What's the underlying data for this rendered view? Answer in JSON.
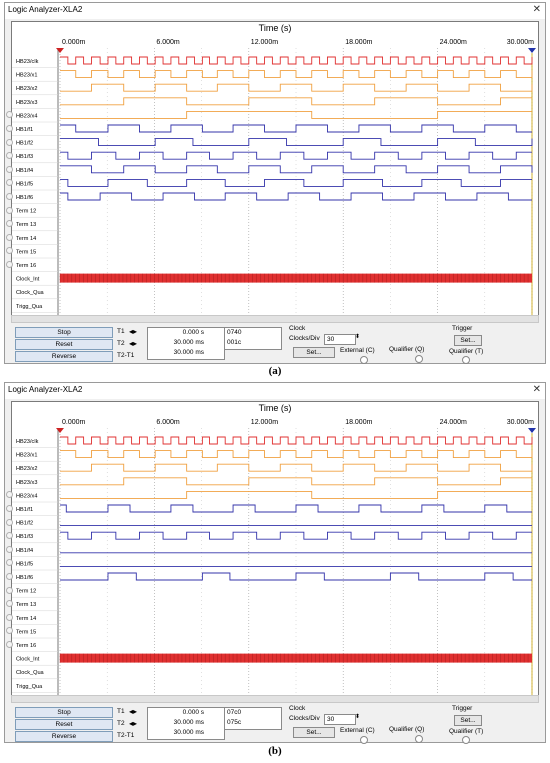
{
  "panels": [
    {
      "caption": "(a)",
      "window_title": "Logic Analyzer-XLA2",
      "axis_title": "Time (s)",
      "ticks": [
        "0.000m",
        "6.000m",
        "12.000m",
        "18.000m",
        "24.000m",
        "30.000m"
      ],
      "signals": [
        "HB23/clk",
        "HB23/x1",
        "HB23/x2",
        "HB23/x3",
        "HB23/x4",
        "HB1/f1",
        "HB1/f2",
        "HB1/f3",
        "HB1/f4",
        "HB1/f5",
        "HB1/f6",
        "Term 12",
        "Term 13",
        "Term 14",
        "Term 15",
        "Term 16",
        "Clock_Int",
        "Clock_Qua",
        "Trigg_Qua"
      ],
      "buttons": {
        "stop": "Stop",
        "reset": "Reset",
        "reverse": "Reverse"
      },
      "t_labels": {
        "t1": "T1",
        "t2": "T2",
        "t2t1": "T2-T1"
      },
      "t_values": {
        "t1": "0.000 s",
        "t2": "30.000 ms",
        "t2t1": "30.000 ms"
      },
      "hex_values": {
        "t1": "0740",
        "t2": "001c"
      },
      "clock": {
        "title": "Clock",
        "clocks_per_div_label": "Clocks/Div",
        "clocks_per_div": "30",
        "set_label": "Set...",
        "external_label": "External (C)",
        "qualifier_label": "Qualifier (Q)"
      },
      "trigger": {
        "title": "Trigger",
        "set_label": "Set...",
        "qualifier_label": "Qualifier (T)"
      }
    },
    {
      "caption": "(b)",
      "window_title": "Logic Analyzer-XLA2",
      "axis_title": "Time (s)",
      "ticks": [
        "0.000m",
        "6.000m",
        "12.000m",
        "18.000m",
        "24.000m",
        "30.000m"
      ],
      "signals": [
        "HB23/clk",
        "HB23/x1",
        "HB23/x2",
        "HB23/x3",
        "HB23/x4",
        "HB1/f1",
        "HB1/f2",
        "HB1/f3",
        "HB1/f4",
        "HB1/f5",
        "HB1/f6",
        "Term 12",
        "Term 13",
        "Term 14",
        "Term 15",
        "Term 16",
        "Clock_Int",
        "Clock_Qua",
        "Trigg_Qua"
      ],
      "buttons": {
        "stop": "Stop",
        "reset": "Reset",
        "reverse": "Reverse"
      },
      "t_labels": {
        "t1": "T1",
        "t2": "T2",
        "t2t1": "T2-T1"
      },
      "t_values": {
        "t1": "0.000 s",
        "t2": "30.000 ms",
        "t2t1": "30.000 ms"
      },
      "hex_values": {
        "t1": "07c0",
        "t2": "075c"
      },
      "clock": {
        "title": "Clock",
        "clocks_per_div_label": "Clocks/Div",
        "clocks_per_div": "30",
        "set_label": "Set...",
        "external_label": "External (C)",
        "qualifier_label": "Qualifier (Q)"
      },
      "trigger": {
        "title": "Trigger",
        "set_label": "Set...",
        "qualifier_label": "Qualifier (T)"
      }
    }
  ],
  "colors": {
    "clk": "#e03030",
    "x_signals": "#f0a040",
    "f_signals": "#3333aa",
    "clock_int": "#e03030",
    "grid": "#999999",
    "cursor": "#c8a000"
  }
}
